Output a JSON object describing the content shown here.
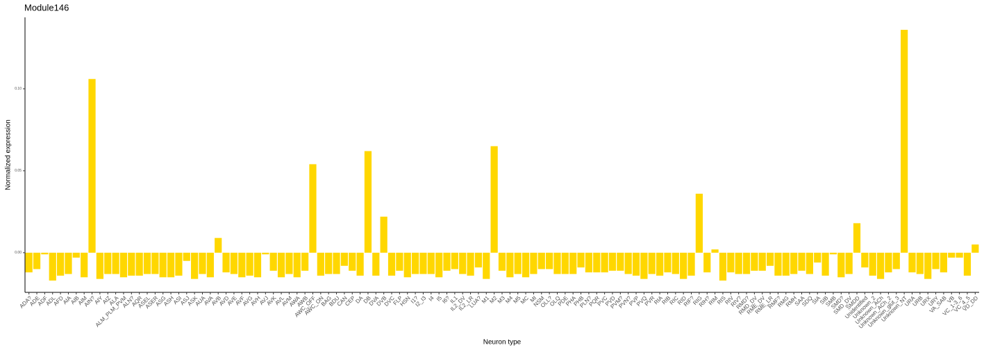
{
  "chart_data": {
    "type": "bar",
    "title": "Module146",
    "x_label": "Neuron type",
    "y_label": "Normalized expression",
    "categories": [
      "ADA?",
      "ADE",
      "ADF",
      "ADL",
      "AFD",
      "AIA",
      "AIB",
      "AIM",
      "AIN?",
      "AIY",
      "AIZ",
      "ALA",
      "ALM_PLM_PVM",
      "ALN?",
      "AQR",
      "ASEL",
      "ASER",
      "ASG",
      "ASH",
      "ASI",
      "ASJ",
      "ASK",
      "AUA",
      "AVA",
      "AVB",
      "AVD",
      "AVE",
      "AVF",
      "AVG",
      "AVH",
      "AVJ",
      "AVK",
      "AVL",
      "AVM",
      "AWA",
      "AWB",
      "AWC_OFF",
      "AWC_ON",
      "BAG",
      "BDU",
      "CAN",
      "CEP",
      "DA",
      "DB",
      "DVA",
      "DVB",
      "DVC",
      "FLP",
      "HSN",
      "I1?",
      "I2_I3",
      "I4",
      "I5",
      "I6?",
      "IL1",
      "IL2_DV",
      "IL2_LR",
      "LUA?",
      "M1",
      "M2",
      "M3",
      "M4",
      "M5",
      "MC",
      "MI",
      "NSM",
      "OLL?",
      "OLQ",
      "PDE",
      "PHA",
      "PHB",
      "PLN?",
      "PQR",
      "PVC",
      "PVD",
      "PVM?",
      "PVN?",
      "PVP",
      "PVQ",
      "PVR",
      "RIA",
      "RIB",
      "RIC",
      "RID",
      "RIF?",
      "RIG",
      "RIH?",
      "RIM",
      "RIS",
      "RIV",
      "RIV?",
      "RMD?",
      "RMD_DV",
      "RME_DV",
      "RME_LR",
      "RMF?",
      "RMG",
      "RMH",
      "SAA",
      "SDQ",
      "SIA",
      "SIB",
      "SMB",
      "SMD?",
      "SMD_DV",
      "SMDD",
      "Unidentified",
      "Unknown_2",
      "Unknown_ACh",
      "Unknown_ACh_2",
      "Unknown_glut_3",
      "Unknown_NT",
      "URA",
      "URB",
      "URX",
      "URY",
      "VA_SAB",
      "VB",
      "VC_1-3_6",
      "VC_4_5",
      "VD_DD"
    ],
    "values": [
      -0.012,
      -0.01,
      -0.001,
      -0.017,
      -0.014,
      -0.013,
      -0.003,
      -0.015,
      0.106,
      -0.016,
      -0.013,
      -0.013,
      -0.015,
      -0.014,
      -0.014,
      -0.013,
      -0.013,
      -0.015,
      -0.015,
      -0.014,
      -0.005,
      -0.016,
      -0.013,
      -0.015,
      0.009,
      -0.012,
      -0.013,
      -0.015,
      -0.014,
      -0.015,
      -0.001,
      -0.011,
      -0.015,
      -0.013,
      -0.015,
      -0.011,
      0.054,
      -0.014,
      -0.013,
      -0.013,
      -0.008,
      -0.011,
      -0.014,
      0.062,
      -0.014,
      0.022,
      -0.014,
      -0.011,
      -0.015,
      -0.013,
      -0.013,
      -0.013,
      -0.015,
      -0.011,
      -0.01,
      -0.013,
      -0.014,
      -0.009,
      -0.016,
      0.065,
      -0.011,
      -0.015,
      -0.013,
      -0.015,
      -0.013,
      -0.01,
      -0.01,
      -0.013,
      -0.013,
      -0.013,
      -0.009,
      -0.012,
      -0.012,
      -0.012,
      -0.011,
      -0.011,
      -0.013,
      -0.014,
      -0.016,
      -0.013,
      -0.014,
      -0.012,
      -0.013,
      -0.016,
      -0.014,
      0.036,
      -0.012,
      0.002,
      -0.017,
      -0.012,
      -0.013,
      -0.013,
      -0.011,
      -0.011,
      -0.008,
      -0.014,
      -0.014,
      -0.013,
      -0.011,
      -0.013,
      -0.006,
      -0.014,
      -0.001,
      -0.015,
      -0.013,
      0.018,
      -0.009,
      -0.014,
      -0.016,
      -0.012,
      -0.01,
      0.136,
      -0.012,
      -0.013,
      -0.016,
      -0.01,
      -0.012,
      -0.003,
      -0.003,
      -0.014,
      0.005
    ],
    "color": "#ffd700",
    "ylim": [
      -0.0242,
      0.1436
    ],
    "yticks": [
      {
        "value": 0,
        "label": "0.00"
      },
      {
        "value": 0.05,
        "label": "0.05"
      },
      {
        "value": 0.1,
        "label": "0.10"
      }
    ]
  }
}
